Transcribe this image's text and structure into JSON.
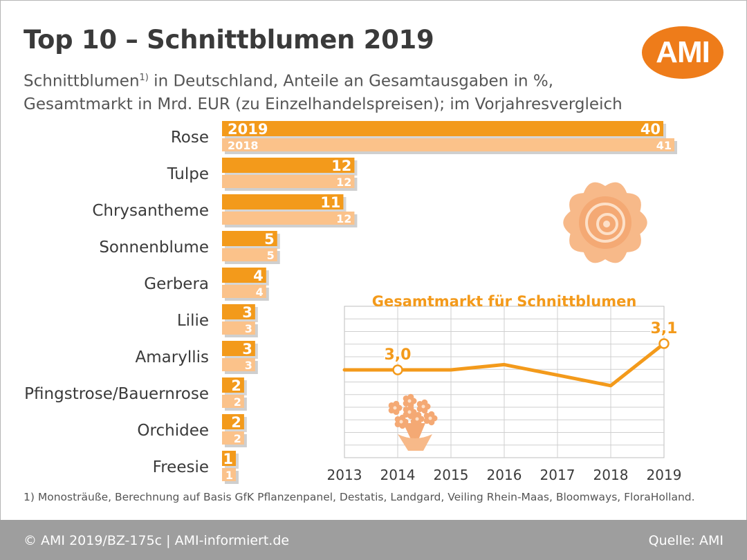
{
  "header": {
    "title": "Top 10 – Schnittblumen 2019",
    "subtitle_line1": "Schnittblumen",
    "subtitle_sup": "1)",
    "subtitle_line1_rest": " in Deutschland, Anteile an Gesamtausgaben in %,",
    "subtitle_line2": "Gesamtmarkt in Mrd. EUR (zu Einzelhandelspreisen); im Vorjahresvergleich",
    "logo": "AMI"
  },
  "footnote": "1) Monosträuße, Berechnung auf Basis GfK Pflanzenpanel, Destatis, Landgard, Veiling Rhein-Maas, Bloomways, FloraHolland.",
  "footer": {
    "left": "© AMI 2019/BZ-175c | AMI-informiert.de",
    "right": "Quelle: AMI"
  },
  "colors": {
    "bar_2019": "#f39a1b",
    "bar_2018": "#fbc28a",
    "line": "#f39a1b",
    "logo": "#ee7c1a",
    "footer": "#9e9e9e"
  },
  "icons": [
    "rose-icon",
    "bouquet-icon"
  ],
  "chart_data": [
    {
      "type": "bar",
      "orientation": "horizontal",
      "categories": [
        "Rose",
        "Tulpe",
        "Chrysantheme",
        "Sonnenblume",
        "Gerbera",
        "Lilie",
        "Amaryllis",
        "Pfingstrose/Bauernrose",
        "Orchidee",
        "Freesie"
      ],
      "series": [
        {
          "name": "2019",
          "values": [
            40,
            12,
            11,
            5,
            4,
            3,
            3,
            2,
            2,
            1
          ]
        },
        {
          "name": "2018",
          "values": [
            41,
            12,
            12,
            5,
            4,
            3,
            3,
            2,
            2,
            1
          ]
        }
      ],
      "xlim": [
        0,
        41
      ]
    },
    {
      "type": "line",
      "title": "Gesamtmarkt für Schnittblumen",
      "x": [
        "2013",
        "2014",
        "2015",
        "2016",
        "2017",
        "2018",
        "2019"
      ],
      "values": [
        3.0,
        3.0,
        3.0,
        3.02,
        2.98,
        2.94,
        3.1
      ],
      "labels": [
        {
          "index": 1,
          "text": "3,0"
        },
        {
          "index": 6,
          "text": "3,1"
        }
      ],
      "grid": true
    }
  ]
}
